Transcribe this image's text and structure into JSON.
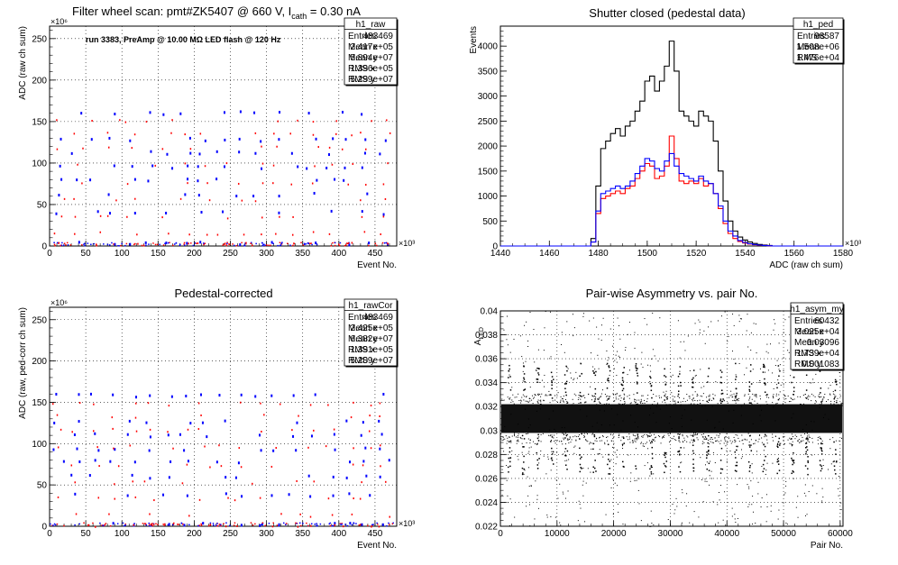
{
  "panels": [
    {
      "title_parts": [
        "Filter wheel scan: pmt#ZK5407 @   660 V, I",
        "cath",
        " = 0.30 nA"
      ],
      "note": "run 3383, PreAmp @ 10.00 MΩ LED flash @  120 Hz",
      "stats": {
        "name": "h1_raw",
        "rows": [
          [
            "Entries",
            "483469"
          ],
          [
            "Mean x",
            "2.417e+05"
          ],
          [
            "Mean y",
            "5.894e+07"
          ],
          [
            "RMS x",
            "1.396e+05"
          ],
          [
            "RMS y",
            "5.299e+07"
          ]
        ]
      },
      "xlabel": "Event No.",
      "ylabel": "ADC (raw ch sum)",
      "xexp": "×10³",
      "yexp": "×10⁶",
      "xticks": [
        "0",
        "50",
        "100",
        "150",
        "200",
        "250",
        "300",
        "350",
        "400",
        "450"
      ],
      "yticks": [
        "0",
        "50",
        "100",
        "150",
        "200",
        "250"
      ]
    },
    {
      "title": "Shutter closed (pedestal data)",
      "stats": {
        "name": "h1_ped",
        "rows": [
          [
            "Entries",
            "98587"
          ],
          [
            "Mean",
            "1.508e+06"
          ],
          [
            "RMS",
            "1.476e+04"
          ]
        ]
      },
      "xlabel": "ADC (raw ch sum)",
      "ylabel": "Events",
      "xexp": "×10³",
      "xticks": [
        "1440",
        "1460",
        "1480",
        "1500",
        "1520",
        "1540",
        "1560",
        "1580"
      ],
      "yticks": [
        "0",
        "500",
        "1000",
        "1500",
        "2000",
        "2500",
        "3000",
        "3500",
        "4000"
      ]
    },
    {
      "title": "Pedestal-corrected",
      "stats": {
        "name": "h1_rawCor",
        "rows": [
          [
            "Entries",
            "483469"
          ],
          [
            "Mean x",
            "2.425e+05"
          ],
          [
            "Mean y",
            "6.382e+07"
          ],
          [
            "RMS x",
            "1.391e+05"
          ],
          [
            "RMS y",
            "5.209e+07"
          ]
        ]
      },
      "xlabel": "Event No.",
      "ylabel": "ADC (raw, ped-corr ch sum)",
      "xexp": "×10³",
      "yexp": "×10⁶",
      "xticks": [
        "0",
        "50",
        "100",
        "150",
        "200",
        "250",
        "300",
        "350",
        "400",
        "450"
      ],
      "yticks": [
        "0",
        "50",
        "100",
        "150",
        "200",
        "250"
      ]
    },
    {
      "title": "Pair-wise Asymmetry vs. pair No.",
      "stats": {
        "name": "h1_asym_my",
        "rows": [
          [
            "Entries",
            "60432"
          ],
          [
            "Mean x",
            "3.025e+04"
          ],
          [
            "Mean y",
            "0.03096"
          ],
          [
            "RMS x",
            "1.739e+04"
          ],
          [
            "RMS y",
            "0.001083"
          ]
        ]
      },
      "xlabel": "Pair No.",
      "ylabel_main": "A",
      "ylabel_sub": "LED",
      "xticks": [
        "0",
        "10000",
        "20000",
        "30000",
        "40000",
        "50000",
        "60000"
      ],
      "yticks": [
        "0.022",
        "0.024",
        "0.026",
        "0.028",
        "0.03",
        "0.032",
        "0.034",
        "0.036",
        "0.038",
        "0.04"
      ]
    }
  ],
  "chart_data": [
    {
      "type": "scatter",
      "name": "h1_raw",
      "xlim": [
        0,
        480000
      ],
      "ylim": [
        0,
        265000000
      ],
      "grid": true,
      "blue_levels_1e6": [
        3,
        40,
        62,
        80,
        95,
        112,
        128,
        160
      ],
      "red_levels_1e6": [
        2,
        15,
        35,
        55,
        75,
        98,
        118,
        135,
        150
      ],
      "step_period_events": 25000,
      "colors": [
        "#0000ff",
        "#ff0000"
      ]
    },
    {
      "type": "line",
      "name": "h1_ped",
      "xlim": [
        1440,
        1580
      ],
      "ylim": [
        0,
        4400
      ],
      "x_unit": "x10^3 ADC",
      "x": [
        1478,
        1480,
        1482,
        1484,
        1486,
        1488,
        1490,
        1492,
        1494,
        1496,
        1498,
        1500,
        1502,
        1504,
        1506,
        1508,
        1510,
        1512,
        1514,
        1516,
        1518,
        1520,
        1522,
        1524,
        1526,
        1528,
        1530,
        1532,
        1534,
        1536,
        1538,
        1540,
        1542,
        1544,
        1546,
        1548,
        1550
      ],
      "series": [
        {
          "color": "#000000",
          "values": [
            150,
            1200,
            1950,
            2100,
            2250,
            2350,
            2200,
            2400,
            2500,
            2700,
            2900,
            3300,
            3400,
            3100,
            3300,
            3600,
            4100,
            3500,
            2700,
            2600,
            2500,
            2400,
            2700,
            2600,
            2500,
            2100,
            1500,
            900,
            500,
            300,
            180,
            120,
            80,
            50,
            30,
            20,
            10
          ]
        },
        {
          "color": "#ff0000",
          "values": [
            80,
            650,
            950,
            1000,
            1050,
            1100,
            1050,
            1150,
            1200,
            1350,
            1500,
            1650,
            1600,
            1350,
            1400,
            1600,
            2200,
            1750,
            1300,
            1250,
            1300,
            1250,
            1350,
            1200,
            1250,
            1050,
            750,
            450,
            250,
            150,
            90,
            60,
            40,
            25,
            15,
            10,
            5
          ]
        },
        {
          "color": "#0000ff",
          "values": [
            80,
            700,
            1050,
            1100,
            1150,
            1200,
            1150,
            1200,
            1300,
            1450,
            1600,
            1750,
            1700,
            1550,
            1500,
            1700,
            1850,
            1600,
            1450,
            1400,
            1350,
            1300,
            1400,
            1300,
            1250,
            1050,
            800,
            500,
            300,
            200,
            110,
            70,
            45,
            30,
            18,
            10,
            5
          ]
        }
      ]
    },
    {
      "type": "scatter",
      "name": "h1_rawCor",
      "xlim": [
        0,
        480000
      ],
      "ylim": [
        0,
        265000000
      ],
      "grid": true,
      "blue_levels_1e6": [
        2,
        38,
        60,
        78,
        93,
        110,
        126,
        158
      ],
      "red_levels_1e6": [
        1,
        13,
        33,
        53,
        73,
        96,
        116,
        133,
        148
      ],
      "step_period_events": 25000,
      "colors": [
        "#0000ff",
        "#ff0000"
      ]
    },
    {
      "type": "scatter",
      "name": "h1_asym_my",
      "xlim": [
        0,
        60500
      ],
      "ylim": [
        0.022,
        0.04
      ],
      "grid": true,
      "band_center": 0.031,
      "band_width": 0.0012,
      "spike_period_pairs": 2500,
      "colors": [
        "#000000"
      ]
    }
  ]
}
